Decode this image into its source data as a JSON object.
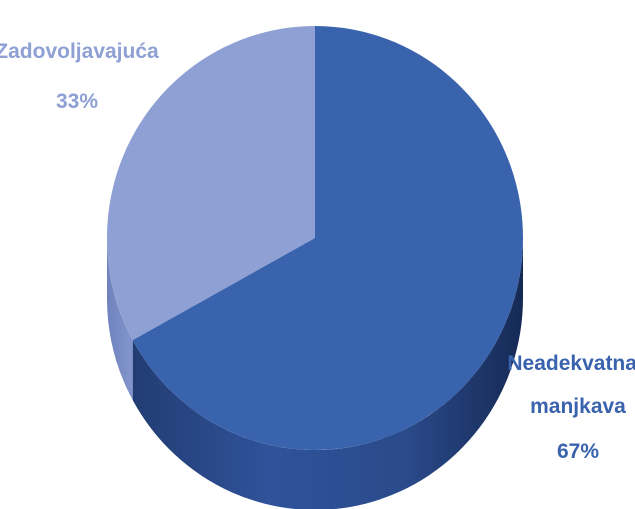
{
  "chart_data": {
    "type": "pie",
    "title": "",
    "style": "3d",
    "slices": [
      {
        "label": "Zadovoljavajuća",
        "value": 33,
        "value_label": "33%",
        "color": "#8EA0D4",
        "label_color": "#8EA0D4"
      },
      {
        "label_lines": [
          "Neadekvatna i",
          "manjkava"
        ],
        "value": 67,
        "value_label": "67%",
        "color": "#3A63AD",
        "label_color": "#3A63AD"
      }
    ]
  }
}
